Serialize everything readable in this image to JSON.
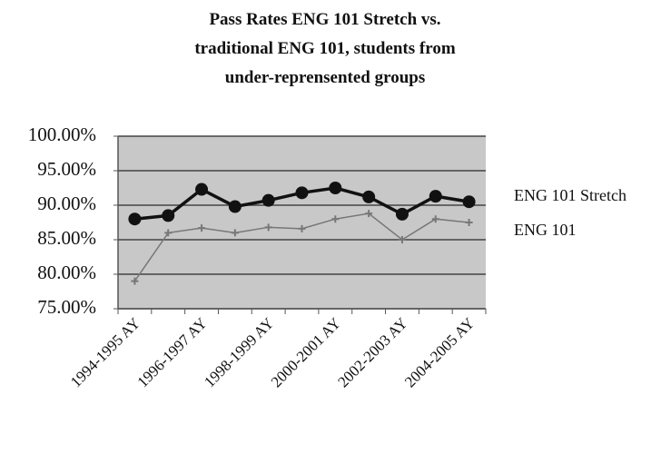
{
  "chart_data": {
    "type": "line",
    "title": "Pass Rates ENG 101 Stretch vs. traditional ENG 101, students from under-reprensented groups",
    "categories": [
      "1994-1995 AY",
      null,
      "1996-1997 AY",
      null,
      "1998-1999 AY",
      null,
      "2000-2001 AY",
      null,
      "2002-2003 AY",
      null,
      "2004-2005 AY"
    ],
    "series": [
      {
        "name": "ENG 101 Stretch",
        "color": "#111111",
        "values": [
          88,
          88.5,
          92.3,
          89.8,
          90.7,
          91.8,
          92.5,
          91.2,
          88.7,
          91.3,
          90.5
        ]
      },
      {
        "name": "ENG 101",
        "color": "#777777",
        "values": [
          79,
          86,
          86.7,
          86,
          86.8,
          86.6,
          88,
          88.8,
          85,
          88,
          87.5
        ]
      }
    ],
    "ylim": [
      75,
      100
    ],
    "yticks": [
      {
        "value": 75,
        "label": "75.00%"
      },
      {
        "value": 80,
        "label": "80.00%"
      },
      {
        "value": 85,
        "label": "85.00%"
      },
      {
        "value": 90,
        "label": "90.00%"
      },
      {
        "value": 95,
        "label": "95.00%"
      },
      {
        "value": 100,
        "label": "100.00%"
      }
    ],
    "grid": true,
    "legend": "right"
  }
}
